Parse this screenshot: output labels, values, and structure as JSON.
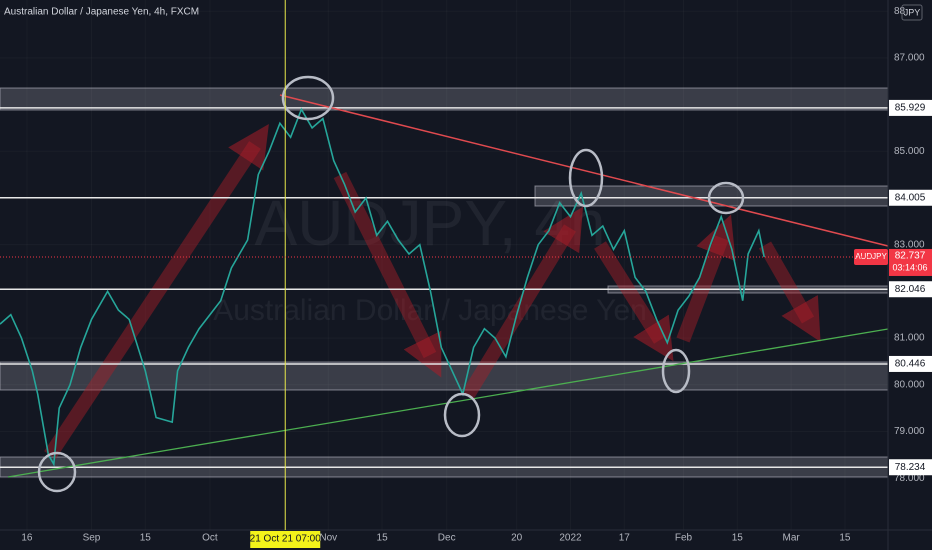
{
  "chart_data": {
    "type": "line",
    "title": "Australian Dollar / Japanese Yen, 4h, FXCM",
    "watermark": [
      "AUDJPY, 4h",
      "Australian Dollar / Japanese Yen"
    ],
    "currency": "JPY",
    "symbol": "AUDJPY",
    "countdown": "03:14:06",
    "last_price": 82.737,
    "color": "#26a69a",
    "x": [
      -5,
      -3,
      -1,
      1,
      2,
      4,
      5,
      6,
      8,
      10,
      12,
      15,
      17,
      19,
      22,
      24,
      27,
      28,
      30,
      32,
      34,
      36,
      38,
      41,
      43,
      45,
      47,
      49,
      51,
      53,
      55,
      57,
      59,
      61,
      63,
      65,
      67,
      69,
      71,
      73,
      75,
      77,
      79,
      81,
      83,
      85,
      87,
      89,
      91,
      93,
      95,
      97,
      99,
      101,
      103,
      105,
      107,
      109,
      111,
      113,
      115,
      117,
      119,
      121,
      123,
      125,
      127,
      129,
      131,
      133,
      134,
      136,
      137
    ],
    "values": [
      81.3,
      81.5,
      81.0,
      80.3,
      79.8,
      78.5,
      78.3,
      79.5,
      80.0,
      80.8,
      81.4,
      82.0,
      81.6,
      81.4,
      80.3,
      79.3,
      79.2,
      80.3,
      80.8,
      81.2,
      81.5,
      81.8,
      82.5,
      83.1,
      84.5,
      85.0,
      85.6,
      85.3,
      85.9,
      85.5,
      85.7,
      84.8,
      84.3,
      83.7,
      84.0,
      83.2,
      83.5,
      83.1,
      82.8,
      83.0,
      82.0,
      80.8,
      80.3,
      79.8,
      80.8,
      81.2,
      81.0,
      80.6,
      81.5,
      82.3,
      83.0,
      83.3,
      83.9,
      83.6,
      84.1,
      83.2,
      83.4,
      82.9,
      83.3,
      82.3,
      82.0,
      81.4,
      80.9,
      81.6,
      81.9,
      82.3,
      83.0,
      83.6,
      82.9,
      81.8,
      82.8,
      83.3,
      82.737
    ],
    "levels": [
      85.929,
      84.005,
      82.046,
      80.446,
      78.234
    ],
    "crosshair": {
      "x": 48,
      "label": "21 Oct 21   07:00"
    },
    "xlim": [
      -5,
      160
    ],
    "xticks": [
      {
        "value": 0,
        "label": "16"
      },
      {
        "value": 12,
        "label": "Sep"
      },
      {
        "value": 22,
        "label": "15"
      },
      {
        "value": 34,
        "label": "Oct"
      },
      {
        "value": 56,
        "label": "Nov"
      },
      {
        "value": 66,
        "label": "15"
      },
      {
        "value": 78,
        "label": "Dec"
      },
      {
        "value": 91,
        "label": "20"
      },
      {
        "value": 101,
        "label": "2022"
      },
      {
        "value": 111,
        "label": "17"
      },
      {
        "value": 122,
        "label": "Feb"
      },
      {
        "value": 132,
        "label": "15"
      },
      {
        "value": 142,
        "label": "Mar"
      },
      {
        "value": 152,
        "label": "15"
      }
    ],
    "ylim": [
      76.89,
      88.24
    ],
    "yticks": [
      88,
      {
        "value": 87,
        "label": "87.000"
      },
      {
        "value": 85,
        "label": "85.000"
      },
      {
        "value": 83,
        "label": "83.000"
      },
      {
        "value": 81,
        "label": "81.000"
      },
      {
        "value": 80,
        "label": "80.000"
      },
      {
        "value": 79,
        "label": "79.000"
      },
      {
        "value": 78,
        "label": "78.000"
      }
    ],
    "grid": true
  }
}
